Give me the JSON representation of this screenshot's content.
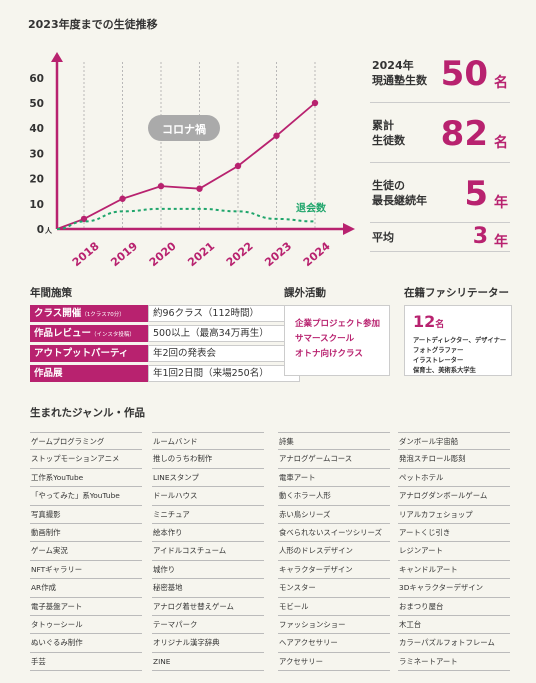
{
  "chart_data": {
    "type": "line",
    "title": "2023年度までの生徒推移",
    "x": [
      "2018",
      "2019",
      "2020",
      "2021",
      "2022",
      "2023",
      "2024"
    ],
    "y_ticks": [
      "0",
      "10",
      "20",
      "30",
      "40",
      "50",
      "60"
    ],
    "y_unit": "人",
    "ylim": [
      0,
      65
    ],
    "grid": "vertical-dashed",
    "series": [
      {
        "name": "",
        "values": [
          4,
          12,
          17,
          16,
          25,
          37,
          50
        ],
        "color": "#b8226f",
        "style": "solid-markers"
      },
      {
        "name": "退会数",
        "values": [
          3,
          7,
          8,
          8,
          7,
          4,
          3
        ],
        "color": "#1fa56b",
        "style": "dashed"
      }
    ],
    "annotations": [
      {
        "text": "コロナ禍",
        "color": "#aaaaaa"
      }
    ]
  },
  "stats": [
    {
      "label1": "2024年",
      "label2": "現通塾生数",
      "value": "50",
      "unit": "名"
    },
    {
      "label1": "累計",
      "label2": "生徒数",
      "value": "82",
      "unit": "名"
    },
    {
      "label1": "生徒の",
      "label2": "最長継続年",
      "value": "5",
      "unit": "年"
    },
    {
      "label1": "平均",
      "label2": "",
      "value": "3",
      "unit": "年"
    }
  ],
  "measures": {
    "title": "年間施策",
    "items": [
      {
        "label": "クラス開催",
        "note": "（1クラス70分）",
        "value": "約96クラス（112時間）"
      },
      {
        "label": "作品レビュー",
        "note": "（インスタ投稿）",
        "value": "500以上（最高34万再生）"
      },
      {
        "label": "アウトプットパーティ",
        "note": "",
        "value": "年2回の発表会"
      },
      {
        "label": "作品展",
        "note": "",
        "value": "年1回2日間（来場250名）"
      }
    ]
  },
  "activities": {
    "title": "課外活動",
    "items": [
      "企業プロジェクト参加",
      "サマースクール",
      "オトナ向けクラス"
    ]
  },
  "facilitators": {
    "title": "在籍ファシリテーター",
    "count": "12",
    "unit": "名",
    "roles": [
      "アートディレクター、デザイナー",
      "フォトグラファー",
      "イラストレーター",
      "保育士、美術系大学生"
    ]
  },
  "genres": {
    "title": "生まれたジャンル・作品",
    "columns": [
      [
        "ゲームプログラミング",
        "ストップモーションアニメ",
        "工作系YouTube",
        "「やってみた」系YouTube",
        "写真撮影",
        "動画制作",
        "ゲーム実況",
        "NFTギャラリー",
        "AR作成",
        "電子基盤アート",
        "タトゥーシール",
        "ぬいぐるみ制作",
        "手芸"
      ],
      [
        "ルームバンド",
        "推しのうちわ制作",
        "LINEスタンプ",
        "ドールハウス",
        "ミニチュア",
        "絵本作り",
        "アイドルコスチューム",
        "城作り",
        "秘密基地",
        "アナログ着せ替えゲーム",
        "テーマパーク",
        "オリジナル漢字辞典",
        "ZINE"
      ],
      [
        "詩集",
        "アナログゲームコース",
        "電車アート",
        "動くホラー人形",
        "赤い鳥シリーズ",
        "食べられないスイーツシリーズ",
        "人形のドレスデザイン",
        "キャラクターデザイン",
        "モンスター",
        "モビール",
        "ファッションショー",
        "ヘアアクセサリー",
        "アクセサリー"
      ],
      [
        "ダンボール宇宙船",
        "発泡スチロール彫刻",
        "ペットホテル",
        "アナログダンボールゲーム",
        "リアルカフェショップ",
        "アートくじ引き",
        "レジンアート",
        "キャンドルアート",
        "3Dキャラクターデザイン",
        "おまつり屋台",
        "木工台",
        "カラーパズルフォトフレーム",
        "ラミネートアート"
      ]
    ]
  }
}
